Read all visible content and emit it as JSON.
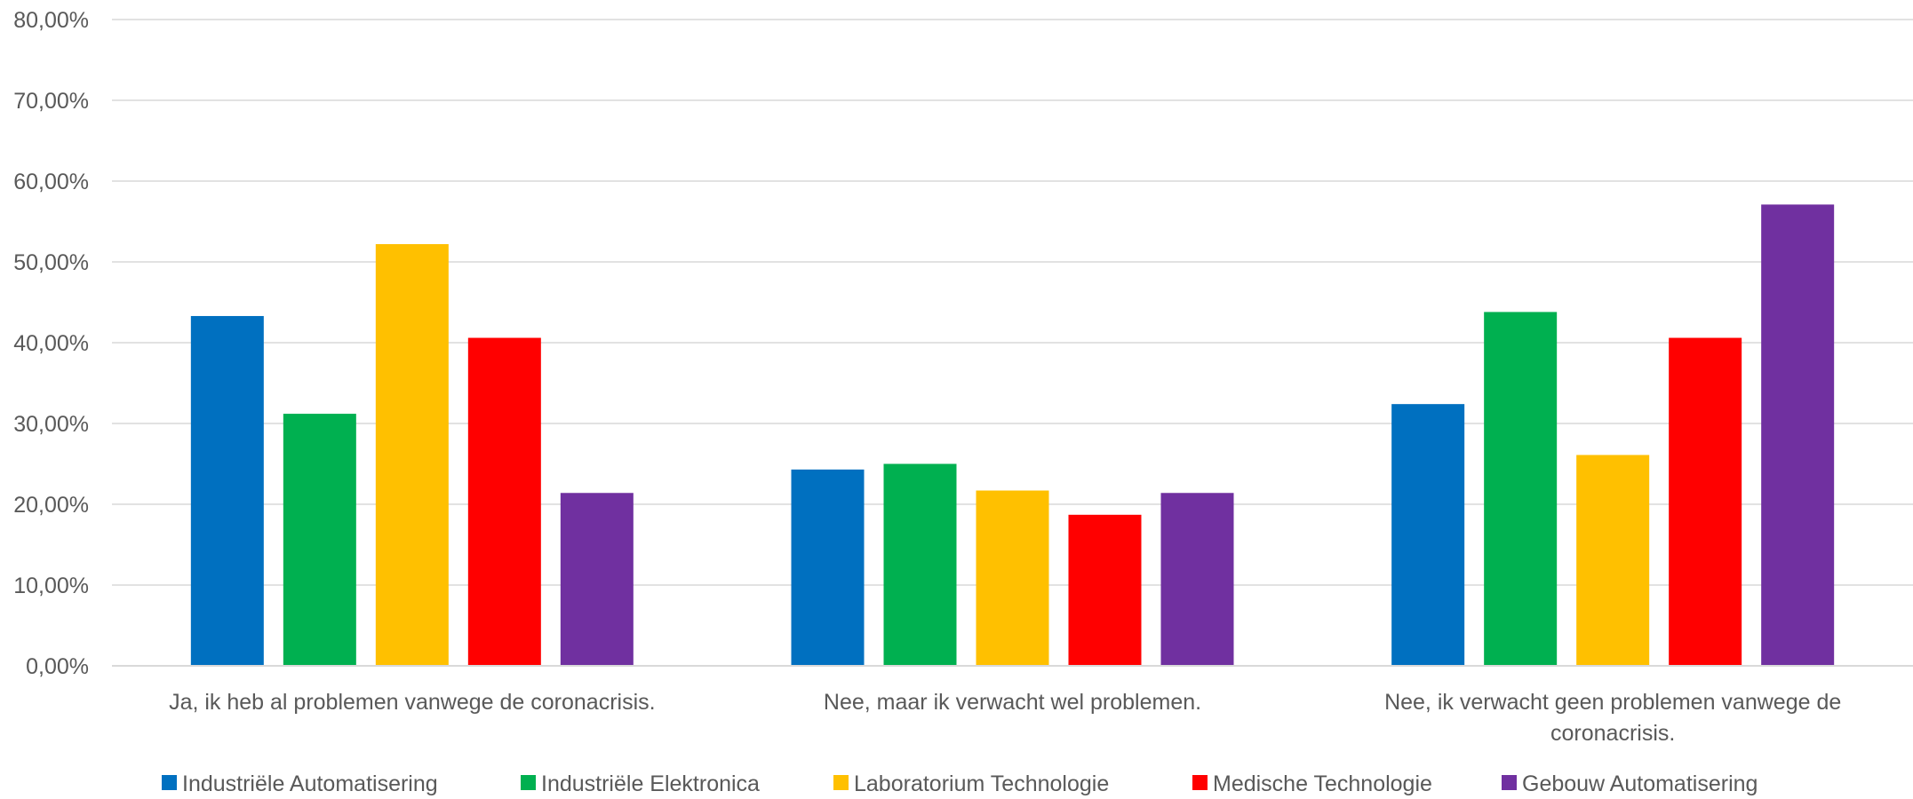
{
  "chart_data": {
    "type": "bar",
    "categories": [
      [
        "Ja, ik heb al problemen vanwege de coronacrisis."
      ],
      [
        "Nee, maar ik verwacht wel problemen."
      ],
      [
        "Nee, ik verwacht geen problemen vanwege de",
        "coronacrisis."
      ]
    ],
    "series": [
      {
        "name": "Industriële Automatisering",
        "color": "#0070C0",
        "values": [
          43.3,
          24.3,
          32.4
        ]
      },
      {
        "name": "Industriële Elektronica",
        "color": "#00B050",
        "values": [
          31.2,
          25.0,
          43.8
        ]
      },
      {
        "name": "Laboratorium Technologie",
        "color": "#FFC000",
        "values": [
          52.2,
          21.7,
          26.1
        ]
      },
      {
        "name": "Medische Technologie",
        "color": "#FF0000",
        "values": [
          40.6,
          18.7,
          40.6
        ]
      },
      {
        "name": "Gebouw Automatisering",
        "color": "#7030A0",
        "values": [
          21.4,
          21.4,
          57.1
        ]
      }
    ],
    "y_ticks": [
      "0,00%",
      "10,00%",
      "20,00%",
      "30,00%",
      "40,00%",
      "50,00%",
      "60,00%",
      "70,00%",
      "80,00%"
    ],
    "ylim": [
      0,
      80
    ],
    "grid": true,
    "legend_position": "bottom"
  }
}
